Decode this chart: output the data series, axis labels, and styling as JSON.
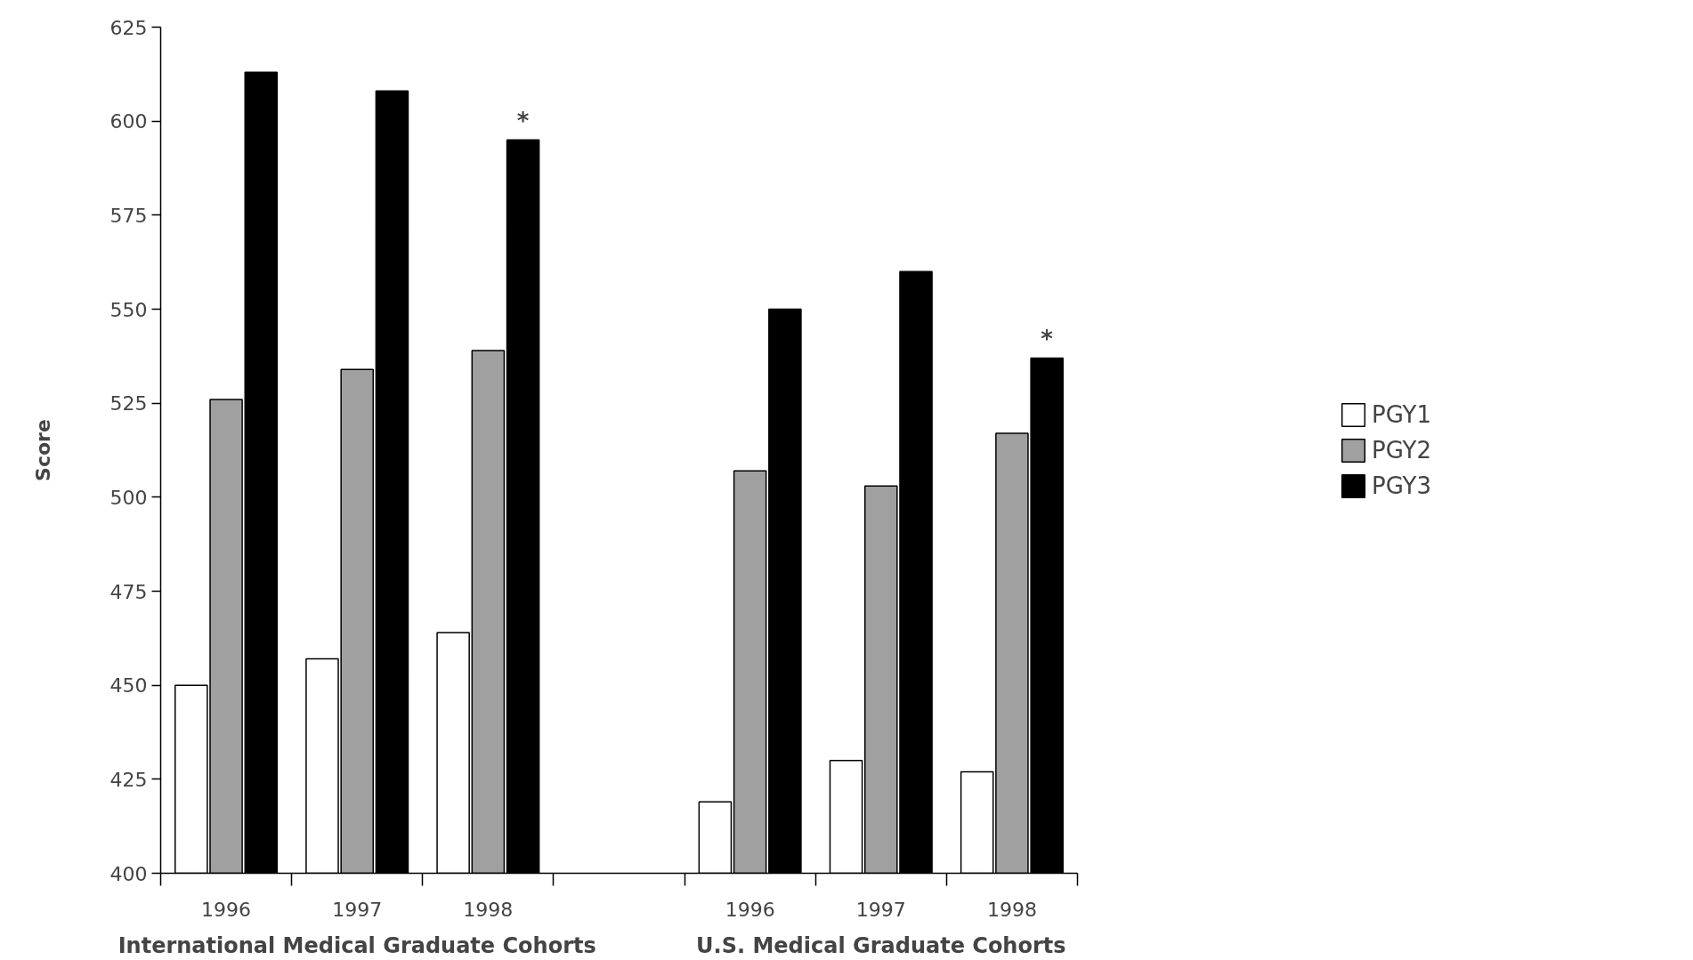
{
  "chart_data": {
    "type": "bar",
    "ylabel": "Score",
    "categories": [
      "1996",
      "1997",
      "1998",
      null,
      "1996",
      "1997",
      "1998"
    ],
    "series": [
      {
        "name": "PGY1",
        "color": "#ffffff",
        "values": [
          450,
          457,
          464,
          null,
          419,
          430,
          427
        ]
      },
      {
        "name": "PGY2",
        "color": "#a0a0a0",
        "values": [
          526,
          534,
          539,
          null,
          507,
          503,
          517
        ]
      },
      {
        "name": "PGY3",
        "color": "#000000",
        "values": [
          613,
          608,
          595,
          null,
          550,
          560,
          537
        ]
      }
    ],
    "ylim": [
      400,
      625
    ],
    "yticks": [
      400,
      425,
      450,
      475,
      500,
      525,
      550,
      575,
      600,
      625
    ],
    "grid": false,
    "legend": "right",
    "annotations": [
      "International Medical Graduate Cohorts",
      "U.S. Medical Graduate Cohorts",
      "*",
      "*"
    ]
  }
}
